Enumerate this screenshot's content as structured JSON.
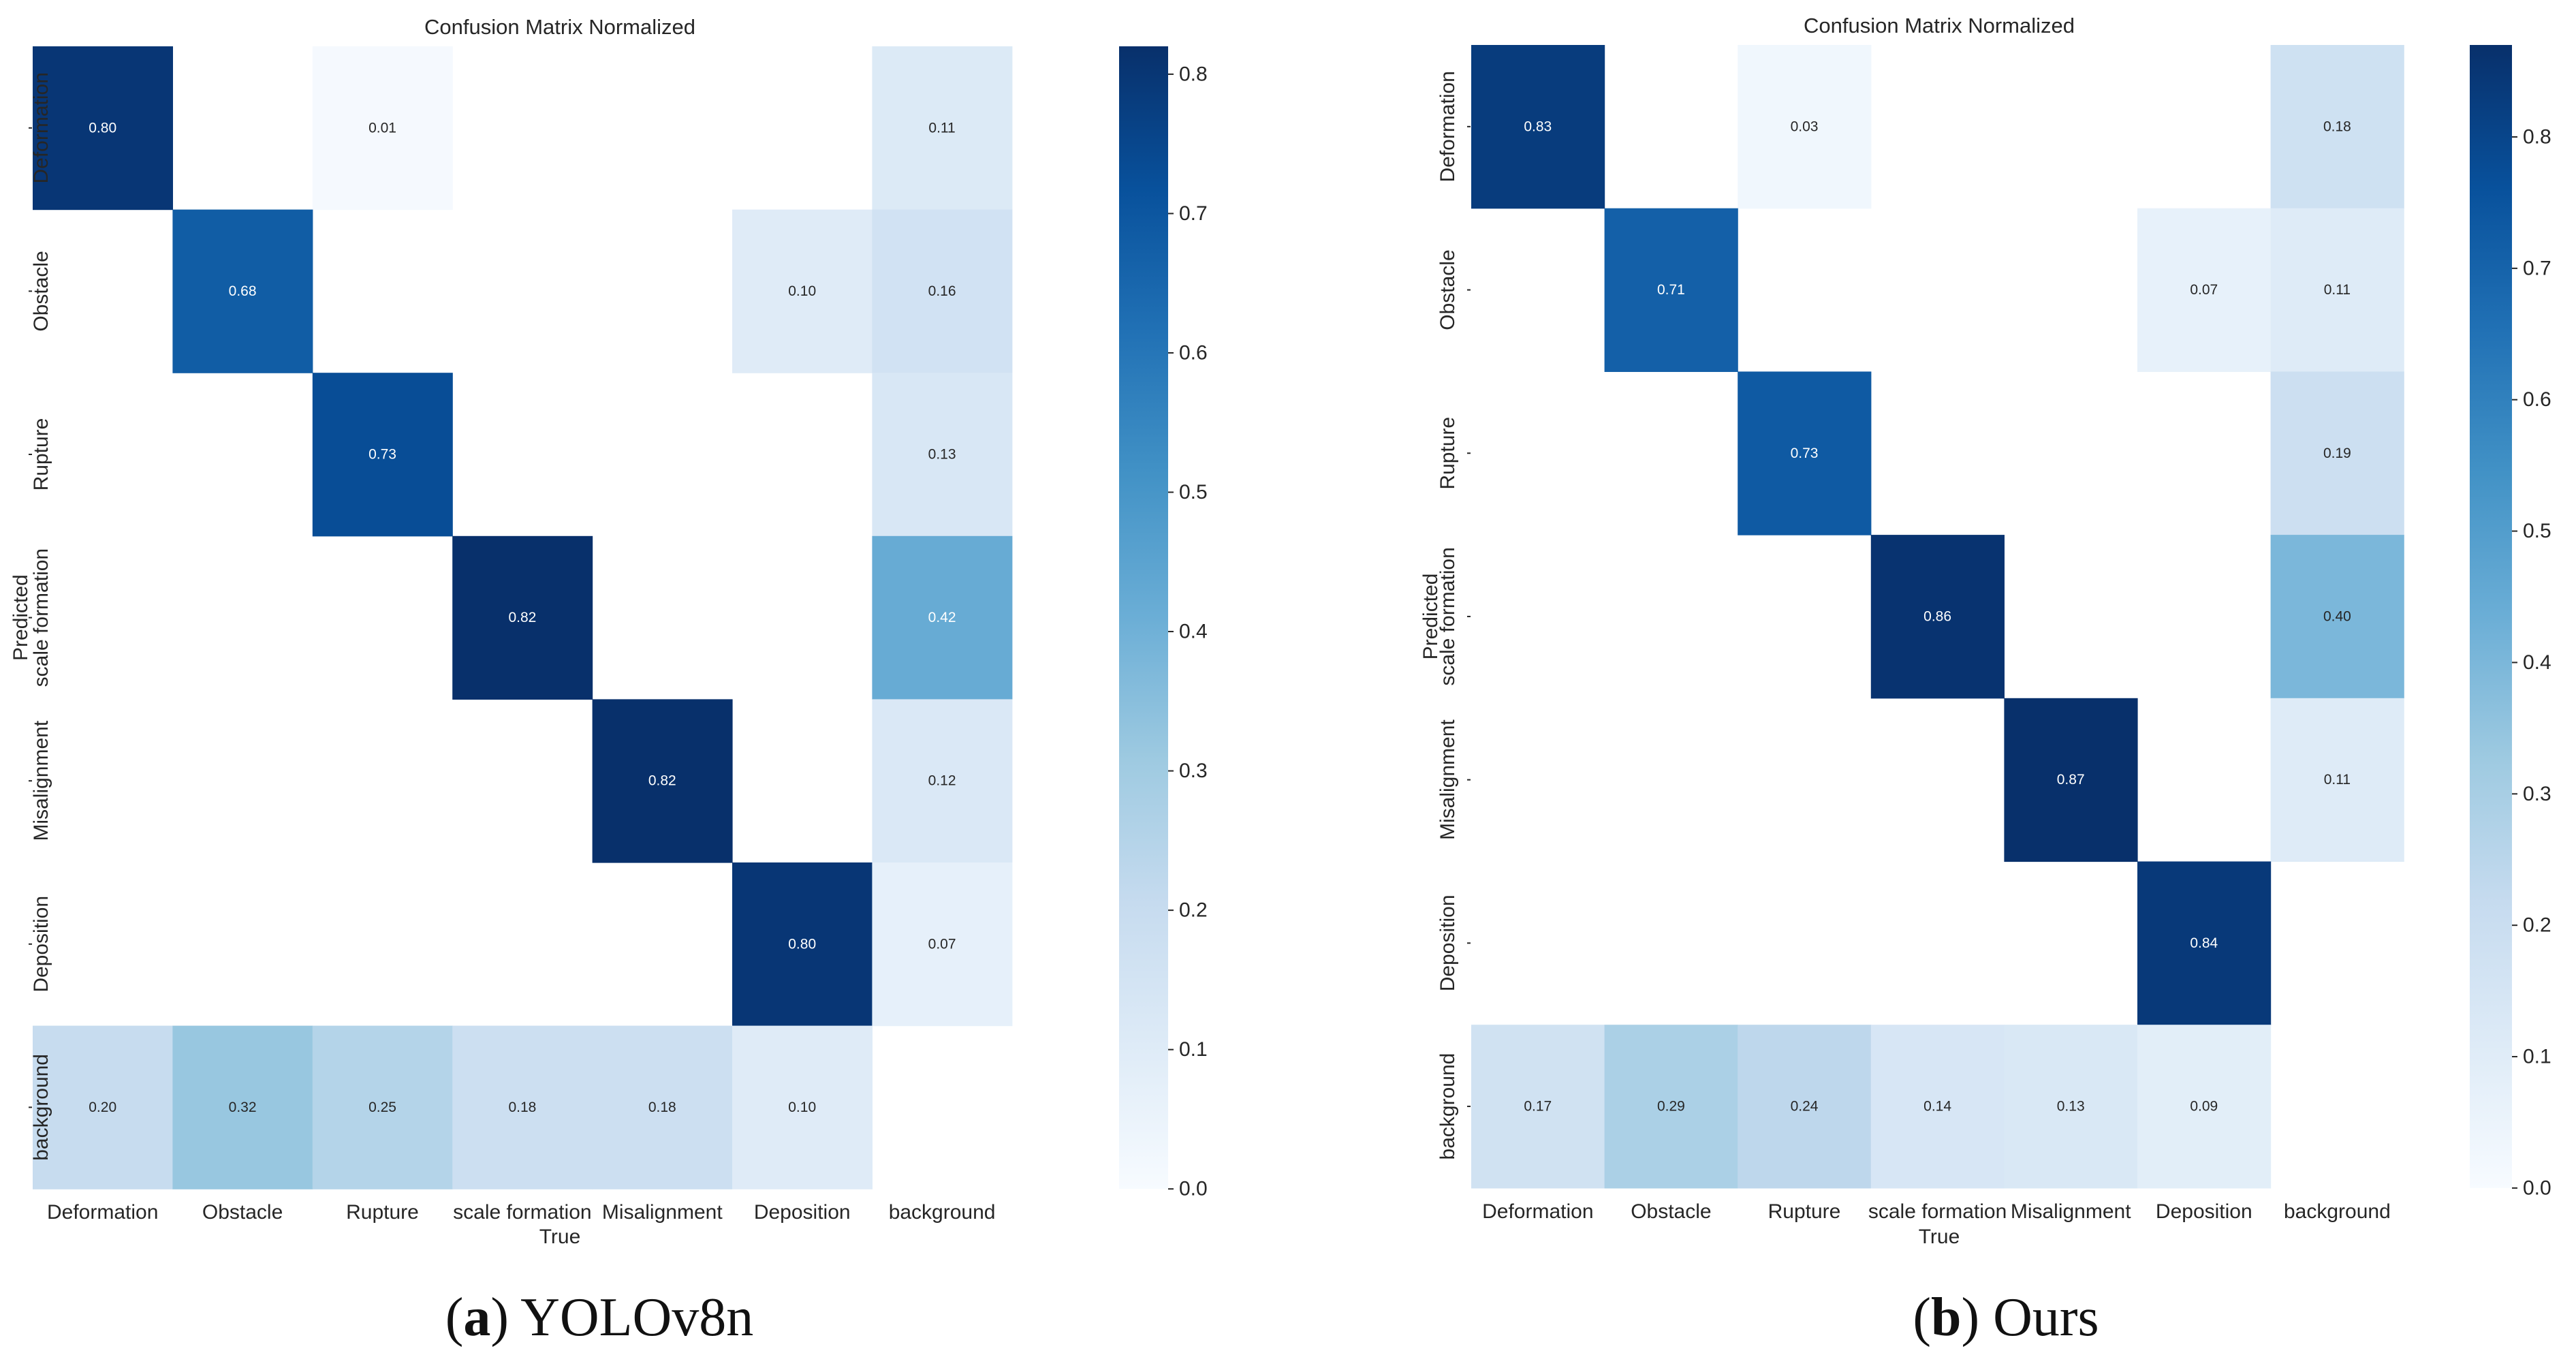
{
  "colors": {
    "cmap": "Blues",
    "low": "#f7fbff",
    "high": "#08306b",
    "text_dark": "#262626"
  },
  "chart_data": [
    {
      "type": "heatmap",
      "title": "Confusion Matrix Normalized",
      "xlabel": "True",
      "ylabel": "Predicted",
      "caption_letter": "a",
      "caption_text": "YOLOv8n",
      "x_labels": [
        "Deformation",
        "Obstacle",
        "Rupture",
        "scale formation",
        "Misalignment",
        "Deposition",
        "background"
      ],
      "y_labels": [
        "Deformation",
        "Obstacle",
        "Rupture",
        "scale formation",
        "Misalignment",
        "Deposition",
        "background"
      ],
      "vmin": 0.0,
      "vmax": 0.82,
      "colorbar_ticks": [
        "0.0",
        "0.1",
        "0.2",
        "0.3",
        "0.4",
        "0.5",
        "0.6",
        "0.7",
        "0.8"
      ],
      "values": [
        [
          0.8,
          null,
          0.01,
          null,
          null,
          null,
          0.11
        ],
        [
          null,
          0.68,
          null,
          null,
          null,
          0.1,
          0.16
        ],
        [
          null,
          null,
          0.73,
          null,
          null,
          null,
          0.13
        ],
        [
          null,
          null,
          null,
          0.82,
          null,
          null,
          0.42
        ],
        [
          null,
          null,
          null,
          null,
          0.82,
          null,
          0.12
        ],
        [
          null,
          null,
          null,
          null,
          null,
          0.8,
          0.07
        ],
        [
          0.2,
          0.32,
          0.25,
          0.18,
          0.18,
          0.1,
          null
        ]
      ]
    },
    {
      "type": "heatmap",
      "title": "Confusion Matrix Normalized",
      "xlabel": "True",
      "ylabel": "Predicted",
      "caption_letter": "b",
      "caption_text": "Ours",
      "x_labels": [
        "Deformation",
        "Obstacle",
        "Rupture",
        "scale formation",
        "Misalignment",
        "Deposition",
        "background"
      ],
      "y_labels": [
        "Deformation",
        "Obstacle",
        "Rupture",
        "scale formation",
        "Misalignment",
        "Deposition",
        "background"
      ],
      "vmin": 0.0,
      "vmax": 0.87,
      "colorbar_ticks": [
        "0.0",
        "0.1",
        "0.2",
        "0.3",
        "0.4",
        "0.5",
        "0.6",
        "0.7",
        "0.8"
      ],
      "values": [
        [
          0.83,
          null,
          0.03,
          null,
          null,
          null,
          0.18
        ],
        [
          null,
          0.71,
          null,
          null,
          null,
          0.07,
          0.11
        ],
        [
          null,
          null,
          0.73,
          null,
          null,
          null,
          0.19
        ],
        [
          null,
          null,
          null,
          0.86,
          null,
          null,
          0.4
        ],
        [
          null,
          null,
          null,
          null,
          0.87,
          null,
          0.11
        ],
        [
          null,
          null,
          null,
          null,
          null,
          0.84,
          null
        ],
        [
          0.17,
          0.29,
          0.24,
          0.14,
          0.13,
          0.09,
          null
        ]
      ]
    }
  ]
}
